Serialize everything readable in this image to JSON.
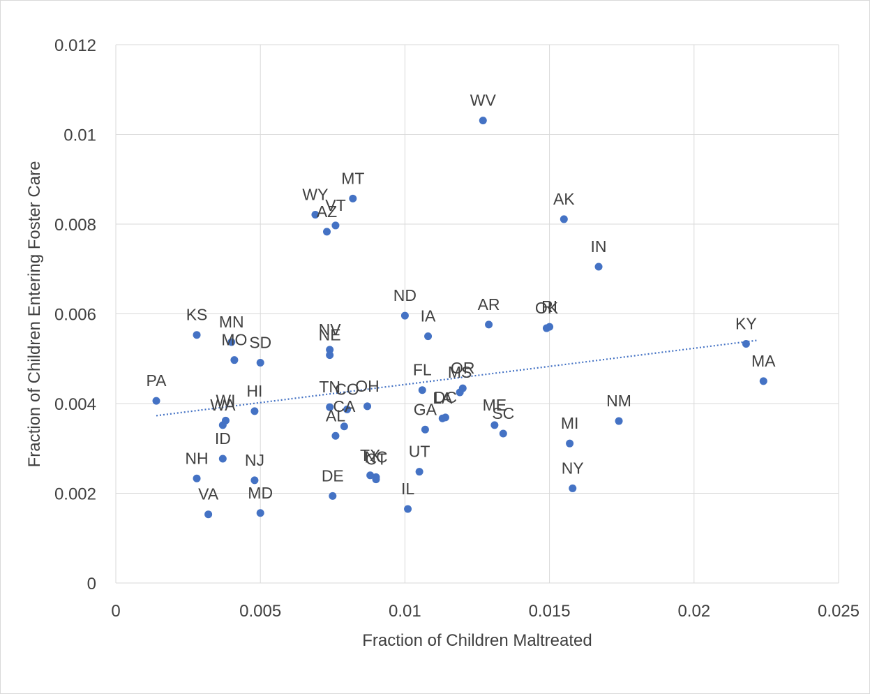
{
  "chart_data": {
    "type": "scatter",
    "title": "",
    "xlabel": "Fraction of Children Maltreated",
    "ylabel": "Fraction of Children Entering Foster Care",
    "xlim": [
      0,
      0.025
    ],
    "ylim": [
      0,
      0.012
    ],
    "x_ticks": [
      "0",
      "0.005",
      "0.01",
      "0.015",
      "0.02",
      "0.025"
    ],
    "y_ticks": [
      "0",
      "0.002",
      "0.004",
      "0.006",
      "0.008",
      "0.01",
      "0.012"
    ],
    "grid": true,
    "legend": "none",
    "marker_color": "#4472c4",
    "trendline": {
      "type": "linear",
      "style": "dotted",
      "color": "#4472c4",
      "x_start": 0.0014,
      "y_start": 0.00373,
      "x_end": 0.0222,
      "y_end": 0.00541
    },
    "points": [
      {
        "label": "WV",
        "x": 0.0127,
        "y": 0.01031
      },
      {
        "label": "MT",
        "x": 0.0082,
        "y": 0.00857
      },
      {
        "label": "WY",
        "x": 0.0069,
        "y": 0.00821
      },
      {
        "label": "VT",
        "x": 0.0076,
        "y": 0.00797
      },
      {
        "label": "AZ",
        "x": 0.0073,
        "y": 0.00783
      },
      {
        "label": "AK",
        "x": 0.0155,
        "y": 0.00811
      },
      {
        "label": "IN",
        "x": 0.0167,
        "y": 0.00705
      },
      {
        "label": "ND",
        "x": 0.01,
        "y": 0.00596
      },
      {
        "label": "IA",
        "x": 0.0108,
        "y": 0.0055
      },
      {
        "label": "AR",
        "x": 0.0129,
        "y": 0.00576
      },
      {
        "label": "OK",
        "x": 0.0149,
        "y": 0.00568
      },
      {
        "label": "RI",
        "x": 0.015,
        "y": 0.00571
      },
      {
        "label": "KY",
        "x": 0.0218,
        "y": 0.00533
      },
      {
        "label": "MA",
        "x": 0.0224,
        "y": 0.0045
      },
      {
        "label": "KS",
        "x": 0.0028,
        "y": 0.00553
      },
      {
        "label": "MN",
        "x": 0.004,
        "y": 0.00537
      },
      {
        "label": "MO",
        "x": 0.0041,
        "y": 0.00497
      },
      {
        "label": "SD",
        "x": 0.005,
        "y": 0.00491
      },
      {
        "label": "NV",
        "x": 0.0074,
        "y": 0.0052
      },
      {
        "label": "NE",
        "x": 0.0074,
        "y": 0.00508
      },
      {
        "label": "PA",
        "x": 0.0014,
        "y": 0.00406
      },
      {
        "label": "FL",
        "x": 0.0106,
        "y": 0.0043
      },
      {
        "label": "OR",
        "x": 0.012,
        "y": 0.00434
      },
      {
        "label": "MS",
        "x": 0.0119,
        "y": 0.00425
      },
      {
        "label": "TN",
        "x": 0.0074,
        "y": 0.00392
      },
      {
        "label": "CO",
        "x": 0.008,
        "y": 0.00387
      },
      {
        "label": "OH",
        "x": 0.0087,
        "y": 0.00394
      },
      {
        "label": "CA",
        "x": 0.0079,
        "y": 0.00349
      },
      {
        "label": "AL",
        "x": 0.0076,
        "y": 0.00328
      },
      {
        "label": "HI",
        "x": 0.0048,
        "y": 0.00383
      },
      {
        "label": "WI",
        "x": 0.0038,
        "y": 0.00362
      },
      {
        "label": "WA",
        "x": 0.0037,
        "y": 0.00352
      },
      {
        "label": "ID",
        "x": 0.0037,
        "y": 0.00277
      },
      {
        "label": "LA",
        "x": 0.0113,
        "y": 0.00367
      },
      {
        "label": "DC",
        "x": 0.0114,
        "y": 0.00369
      },
      {
        "label": "GA",
        "x": 0.0107,
        "y": 0.00342
      },
      {
        "label": "ME",
        "x": 0.0131,
        "y": 0.00352
      },
      {
        "label": "SC",
        "x": 0.0134,
        "y": 0.00333
      },
      {
        "label": "NM",
        "x": 0.0174,
        "y": 0.00361
      },
      {
        "label": "MI",
        "x": 0.0157,
        "y": 0.00311
      },
      {
        "label": "NY",
        "x": 0.0158,
        "y": 0.00211
      },
      {
        "label": "UT",
        "x": 0.0105,
        "y": 0.00248
      },
      {
        "label": "TX",
        "x": 0.0088,
        "y": 0.0024
      },
      {
        "label": "NC",
        "x": 0.009,
        "y": 0.00236
      },
      {
        "label": "CT",
        "x": 0.009,
        "y": 0.00231
      },
      {
        "label": "IL",
        "x": 0.0101,
        "y": 0.00165
      },
      {
        "label": "DE",
        "x": 0.0075,
        "y": 0.00194
      },
      {
        "label": "NH",
        "x": 0.0028,
        "y": 0.00233
      },
      {
        "label": "NJ",
        "x": 0.0048,
        "y": 0.00229
      },
      {
        "label": "VA",
        "x": 0.0032,
        "y": 0.00153
      },
      {
        "label": "MD",
        "x": 0.005,
        "y": 0.00156
      }
    ]
  }
}
